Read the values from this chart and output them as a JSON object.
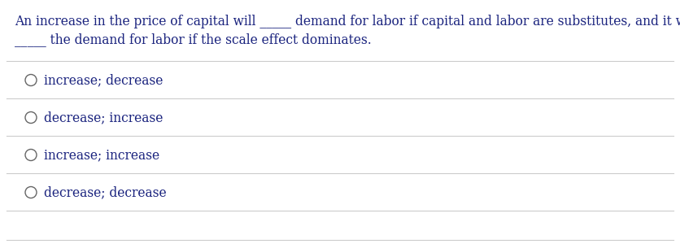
{
  "background_color": "#ffffff",
  "text_color": "#1a237e",
  "question_line1": "An increase in the price of capital will _____ demand for labor if capital and labor are substitutes, and it will",
  "question_line2": "_____ the demand for labor if the scale effect dominates.",
  "options": [
    "increase; decrease",
    "decrease; increase",
    "increase; increase",
    "decrease; decrease"
  ],
  "separator_color": "#cccccc",
  "circle_color": "#666666",
  "font_size_question": 11.2,
  "font_size_options": 11.2,
  "font_family": "DejaVu Serif"
}
